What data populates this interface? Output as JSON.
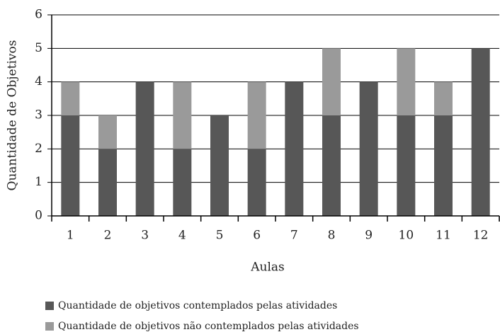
{
  "chart_data": {
    "type": "stacked_bar",
    "categories": [
      "1",
      "2",
      "3",
      "4",
      "5",
      "6",
      "7",
      "8",
      "9",
      "10",
      "11",
      "12"
    ],
    "series": [
      {
        "name": "Quantidade de objetivos contemplados pelas atividades",
        "color": "#575757",
        "values": [
          3,
          2,
          4,
          2,
          3,
          2,
          4,
          3,
          4,
          3,
          3,
          5
        ]
      },
      {
        "name": "Quantidade de objetivos não contemplados pelas atividades",
        "color": "#9a9a9a",
        "values": [
          1,
          1,
          0,
          2,
          0,
          2,
          0,
          2,
          0,
          2,
          1,
          0
        ]
      }
    ],
    "x_label": "Aulas",
    "y_label": "Quantidade de Objetivos",
    "ylim": [
      0,
      6
    ],
    "yticks": [
      0,
      1,
      2,
      3,
      4,
      5,
      6
    ],
    "grid": true
  }
}
